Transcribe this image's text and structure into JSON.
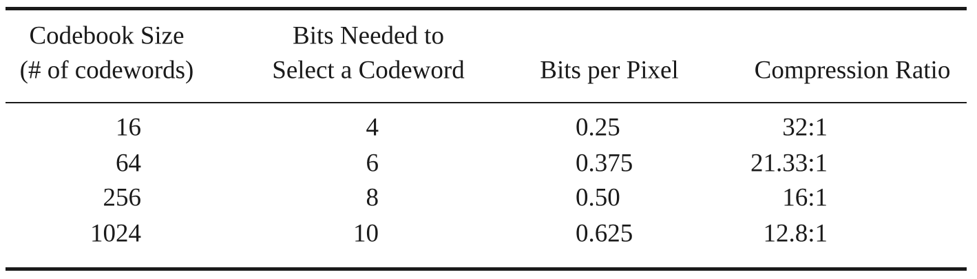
{
  "table": {
    "header": [
      [
        "Codebook Size",
        "(# of codewords)"
      ],
      [
        "Bits Needed to",
        "Select a Codeword"
      ],
      [
        "Bits per Pixel"
      ],
      [
        "Compression Ratio"
      ]
    ],
    "rows": [
      [
        "16",
        "4",
        "0.25",
        "32:1"
      ],
      [
        "64",
        "6",
        "0.375",
        "21.33:1"
      ],
      [
        "256",
        "8",
        "0.50",
        "16:1"
      ],
      [
        "1024",
        "10",
        "0.625",
        "12.8:1"
      ]
    ]
  }
}
